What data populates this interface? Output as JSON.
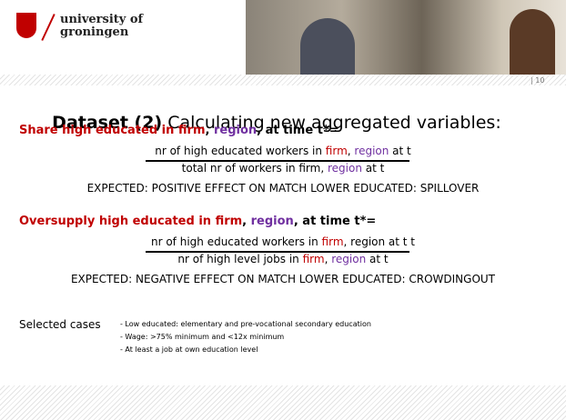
{
  "header": {
    "logo_line1": "university of",
    "logo_line2": "groningen",
    "page_number": "| 10"
  },
  "title": {
    "bold": "Dataset (2)",
    "rest": " Calculating new aggregated variables:"
  },
  "blocks": [
    {
      "heading": [
        {
          "text": "Share high educated in firm",
          "color": "#c00000"
        },
        {
          "text": ", ",
          "color": "#000000"
        },
        {
          "text": "region",
          "color": "#7030a0"
        },
        {
          "text": ", at time t*=",
          "color": "#000000"
        }
      ],
      "numerator": [
        {
          "text": "nr of high educated workers in ",
          "color": "#000000"
        },
        {
          "text": "firm",
          "color": "#c00000"
        },
        {
          "text": ", ",
          "color": "#000000"
        },
        {
          "text": "region",
          "color": "#7030a0"
        },
        {
          "text": " at t",
          "color": "#000000"
        }
      ],
      "denominator": [
        {
          "text": "total nr of workers in firm, ",
          "color": "#000000"
        },
        {
          "text": "region",
          "color": "#7030a0"
        },
        {
          "text": " at t",
          "color": "#000000"
        }
      ],
      "expected": "EXPECTED: POSITIVE EFFECT ON MATCH LOWER EDUCATED: SPILLOVER"
    },
    {
      "heading": [
        {
          "text": "Oversupply high educated in firm",
          "color": "#c00000"
        },
        {
          "text": ", ",
          "color": "#000000"
        },
        {
          "text": "region",
          "color": "#7030a0"
        },
        {
          "text": ", at time t*=",
          "color": "#000000"
        }
      ],
      "numerator": [
        {
          "text": "nr of high educated workers in ",
          "color": "#000000"
        },
        {
          "text": "firm",
          "color": "#c00000"
        },
        {
          "text": ", region at t t",
          "color": "#000000"
        }
      ],
      "denominator": [
        {
          "text": "nr of high level jobs in ",
          "color": "#000000"
        },
        {
          "text": "firm",
          "color": "#c00000"
        },
        {
          "text": ", ",
          "color": "#000000"
        },
        {
          "text": "region",
          "color": "#7030a0"
        },
        {
          "text": " at t",
          "color": "#000000"
        }
      ],
      "expected": "EXPECTED: NEGATIVE EFFECT ON MATCH LOWER EDUCATED: CROWDINGOUT"
    }
  ],
  "selected": {
    "label": "Selected cases",
    "items": [
      "- Low educated: elementary and pre-vocational secondary education",
      "- Wage: >75% minimum and <12x minimum",
      "- At least a job at own education level"
    ]
  }
}
